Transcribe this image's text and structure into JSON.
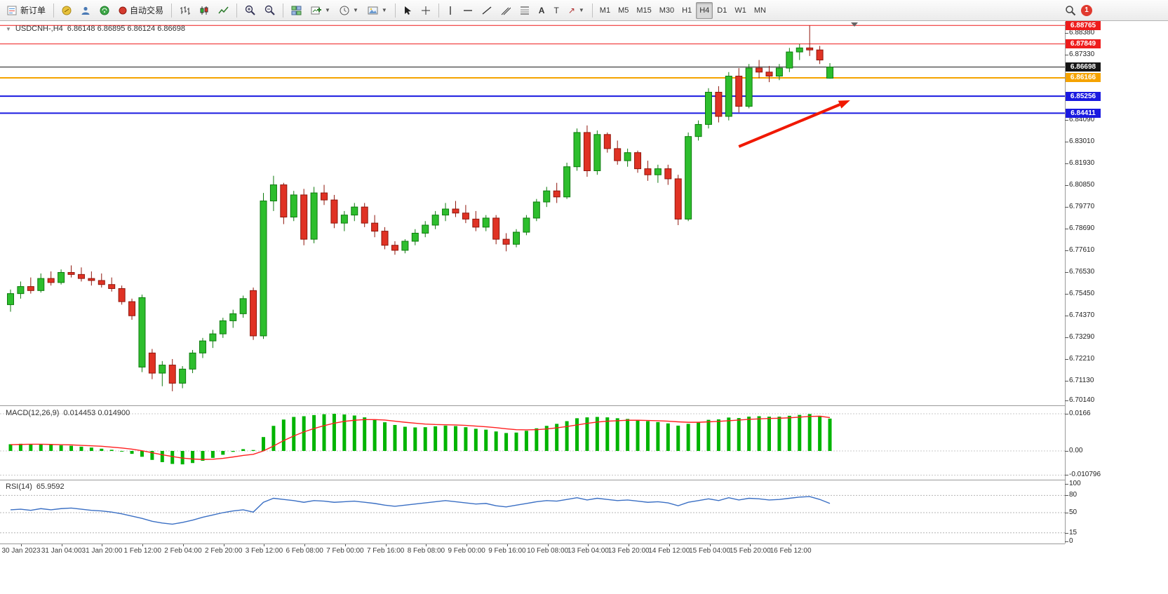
{
  "toolbar": {
    "new_order_label": "新订单",
    "auto_trading_label": "自动交易",
    "timeframes": [
      "M1",
      "M5",
      "M15",
      "M30",
      "H1",
      "H4",
      "D1",
      "W1",
      "MN"
    ],
    "active_timeframe": "H4",
    "notification_badge": "1"
  },
  "chart": {
    "symbol_title": "USDCNH-,H4",
    "ohlc_text": "6.86148 6.86895 6.86124 6.86698"
  },
  "chart_data": {
    "type": "candlestick",
    "symbol": "USDCNH-",
    "timeframe": "H4",
    "current_ohlc": {
      "open": "6.86148",
      "high": "6.86895",
      "low": "6.86124",
      "close": "6.86698"
    },
    "colors": {
      "up": "#2DBE2D",
      "up_edge": "#0E7A0E",
      "down": "#E03224",
      "down_edge": "#8F160C"
    },
    "price_axis_ticks": [
      "6.88380",
      "6.87330",
      "6.84090",
      "6.83010",
      "6.81930",
      "6.80850",
      "6.79770",
      "6.78690",
      "6.77610",
      "6.76530",
      "6.75450",
      "6.74370",
      "6.73290",
      "6.72210",
      "6.71130",
      "6.70140"
    ],
    "levels": [
      {
        "price": 6.88765,
        "label": "6.88765",
        "color": "#ee1c1c",
        "lw": 1,
        "current": false
      },
      {
        "price": 6.87849,
        "label": "6.87849",
        "color": "#ee1c1c",
        "lw": 1,
        "current": false
      },
      {
        "price": 6.86698,
        "label": "6.86698",
        "color": "#151515",
        "lw": 1,
        "current": true
      },
      {
        "price": 6.86166,
        "label": "6.86166",
        "color": "#f5a300",
        "lw": 2,
        "current": false
      },
      {
        "price": 6.85256,
        "label": "6.85256",
        "color": "#1a1ae0",
        "lw": 2,
        "current": false
      },
      {
        "price": 6.84411,
        "label": "6.84411",
        "color": "#1a1ae0",
        "lw": 2,
        "current": false
      }
    ],
    "candles": [
      [
        6.749,
        6.7565,
        6.7455,
        6.7545
      ],
      [
        6.7545,
        6.7605,
        6.752,
        6.758
      ],
      [
        6.758,
        6.7625,
        6.7545,
        6.756
      ],
      [
        6.756,
        6.7645,
        6.755,
        6.762
      ],
      [
        6.762,
        6.7655,
        6.7585,
        6.76
      ],
      [
        6.76,
        6.7665,
        6.759,
        6.765
      ],
      [
        6.765,
        6.7685,
        6.7625,
        6.764
      ],
      [
        6.764,
        6.7675,
        6.7605,
        6.762
      ],
      [
        6.762,
        6.7655,
        6.7585,
        6.761
      ],
      [
        6.761,
        6.7645,
        6.7575,
        6.759
      ],
      [
        6.759,
        6.7625,
        6.7555,
        6.757
      ],
      [
        6.757,
        6.7585,
        6.749,
        6.7505
      ],
      [
        6.7505,
        6.752,
        6.7415,
        6.7435
      ],
      [
        6.718,
        6.754,
        6.7155,
        6.7525
      ],
      [
        6.725,
        6.727,
        6.712,
        6.715
      ],
      [
        6.715,
        6.721,
        6.7085,
        6.719
      ],
      [
        6.719,
        6.722,
        6.706,
        6.71
      ],
      [
        6.71,
        6.7185,
        6.7075,
        6.717
      ],
      [
        6.717,
        6.7265,
        6.715,
        6.725
      ],
      [
        6.725,
        6.7325,
        6.7225,
        6.731
      ],
      [
        6.731,
        6.7365,
        6.7275,
        6.7345
      ],
      [
        6.7345,
        6.7425,
        6.7325,
        6.741
      ],
      [
        6.741,
        6.7465,
        6.7375,
        6.7445
      ],
      [
        6.7445,
        6.7535,
        6.7425,
        6.752
      ],
      [
        6.756,
        6.7575,
        6.7315,
        6.7335
      ],
      [
        6.7335,
        6.8045,
        6.732,
        6.8005
      ],
      [
        6.8005,
        6.813,
        6.7955,
        6.8085
      ],
      [
        6.8085,
        6.8095,
        6.789,
        6.7925
      ],
      [
        6.7925,
        6.8055,
        6.7905,
        6.8035
      ],
      [
        6.8035,
        6.8065,
        6.7785,
        6.7815
      ],
      [
        6.7815,
        6.8075,
        6.7795,
        6.8045
      ],
      [
        6.8045,
        6.8085,
        6.7985,
        6.801
      ],
      [
        6.801,
        6.8035,
        6.787,
        6.7895
      ],
      [
        6.7895,
        6.7955,
        6.7855,
        6.7935
      ],
      [
        6.7935,
        6.7995,
        6.7905,
        6.7975
      ],
      [
        6.7975,
        6.7995,
        6.7875,
        6.7895
      ],
      [
        6.7895,
        6.7935,
        6.7825,
        6.7855
      ],
      [
        6.7855,
        6.7875,
        6.7765,
        6.7785
      ],
      [
        6.7785,
        6.7805,
        6.7738,
        6.776
      ],
      [
        6.776,
        6.7815,
        6.7745,
        6.7805
      ],
      [
        6.7805,
        6.7865,
        6.7785,
        6.7845
      ],
      [
        6.7845,
        6.7905,
        6.7825,
        6.7885
      ],
      [
        6.7885,
        6.7955,
        6.7865,
        6.7935
      ],
      [
        6.7935,
        6.7995,
        6.7905,
        6.7965
      ],
      [
        6.7965,
        6.8005,
        6.7925,
        6.7945
      ],
      [
        6.7945,
        6.7985,
        6.7895,
        6.7915
      ],
      [
        6.7915,
        6.7955,
        6.7855,
        6.7875
      ],
      [
        6.7875,
        6.7935,
        6.7855,
        6.792
      ],
      [
        6.792,
        6.7935,
        6.779,
        6.7815
      ],
      [
        6.7815,
        6.7845,
        6.7755,
        6.779
      ],
      [
        6.779,
        6.7865,
        6.7775,
        6.785
      ],
      [
        6.785,
        6.7935,
        6.7835,
        6.792
      ],
      [
        6.792,
        6.8015,
        6.7905,
        6.8
      ],
      [
        6.8,
        6.8075,
        6.7975,
        6.8055
      ],
      [
        6.8055,
        6.8095,
        6.7995,
        6.8025
      ],
      [
        6.8025,
        6.8195,
        6.8015,
        6.8175
      ],
      [
        6.8175,
        6.8365,
        6.8155,
        6.8345
      ],
      [
        6.8345,
        6.838,
        6.8125,
        6.8155
      ],
      [
        6.8155,
        6.8355,
        6.8135,
        6.8335
      ],
      [
        6.8335,
        6.8345,
        6.8245,
        6.8265
      ],
      [
        6.8265,
        6.8305,
        6.8185,
        6.8205
      ],
      [
        6.8205,
        6.8265,
        6.8175,
        6.8245
      ],
      [
        6.8245,
        6.8255,
        6.8145,
        6.8165
      ],
      [
        6.8165,
        6.8205,
        6.8105,
        6.8135
      ],
      [
        6.8135,
        6.8185,
        6.8095,
        6.8165
      ],
      [
        6.8165,
        6.8185,
        6.8085,
        6.8115
      ],
      [
        6.8115,
        6.8135,
        6.7885,
        6.7915
      ],
      [
        6.7915,
        6.8345,
        6.7905,
        6.8325
      ],
      [
        6.8325,
        6.8405,
        6.8305,
        6.8385
      ],
      [
        6.8385,
        6.8565,
        6.8365,
        6.8545
      ],
      [
        6.8545,
        6.8575,
        6.8395,
        6.8425
      ],
      [
        6.8425,
        6.8645,
        6.8405,
        6.8625
      ],
      [
        6.8625,
        6.8665,
        6.8445,
        6.8475
      ],
      [
        6.8475,
        6.8685,
        6.8465,
        6.8665
      ],
      [
        6.8665,
        6.8705,
        6.8615,
        6.8645
      ],
      [
        6.8645,
        6.8675,
        6.8595,
        6.8625
      ],
      [
        6.8625,
        6.8685,
        6.8605,
        6.8665
      ],
      [
        6.8665,
        6.8765,
        6.8645,
        6.8745
      ],
      [
        6.8745,
        6.8785,
        6.8705,
        6.8765
      ],
      [
        6.8765,
        6.8876,
        6.8725,
        6.8755
      ],
      [
        6.8755,
        6.8775,
        6.8685,
        6.8705
      ],
      [
        6.86148,
        6.86895,
        6.86124,
        6.86698
      ]
    ],
    "macd": {
      "label": "MACD(12,26,9)",
      "values_text": "0.014453 0.014900",
      "hist_value": 0.014453,
      "line_value": 0.0149,
      "ticks": [
        {
          "label": "0.0166",
          "value": 0.0166
        },
        {
          "label": "0.00",
          "value": 0
        },
        {
          "label": "-0.010796",
          "value": -0.010796
        }
      ],
      "histogram": [
        0.003,
        0.0032,
        0.0031,
        0.0029,
        0.0027,
        0.0025,
        0.0023,
        0.0019,
        0.0015,
        0.001,
        0.0005,
        -0.0003,
        -0.0013,
        -0.0026,
        -0.004,
        -0.005,
        -0.0058,
        -0.006,
        -0.0054,
        -0.0044,
        -0.0031,
        -0.0017,
        -0.0004,
        0.0008,
        0.0004,
        0.0062,
        0.0112,
        0.014,
        0.0152,
        0.0155,
        0.016,
        0.0164,
        0.0166,
        0.0163,
        0.0158,
        0.015,
        0.014,
        0.0128,
        0.0116,
        0.0108,
        0.0105,
        0.0106,
        0.011,
        0.0113,
        0.0111,
        0.0106,
        0.0099,
        0.0095,
        0.0087,
        0.008,
        0.0082,
        0.009,
        0.0101,
        0.0112,
        0.0121,
        0.0133,
        0.0146,
        0.015,
        0.0152,
        0.015,
        0.0146,
        0.0143,
        0.0139,
        0.0133,
        0.0129,
        0.0123,
        0.0113,
        0.0121,
        0.0129,
        0.0139,
        0.0141,
        0.0149,
        0.0147,
        0.0153,
        0.0155,
        0.0153,
        0.0153,
        0.0157,
        0.0161,
        0.0165,
        0.0157,
        0.01445
      ],
      "signal": [
        0.0028,
        0.0029,
        0.003,
        0.003,
        0.0029,
        0.0028,
        0.0027,
        0.0025,
        0.0023,
        0.0021,
        0.0017,
        0.0013,
        0.0008,
        0.0001,
        -0.0008,
        -0.0017,
        -0.0025,
        -0.0032,
        -0.0036,
        -0.0038,
        -0.0037,
        -0.0033,
        -0.0027,
        -0.002,
        -0.0015,
        0.0,
        0.0022,
        0.0046,
        0.0067,
        0.0085,
        0.01,
        0.0113,
        0.0124,
        0.0132,
        0.0137,
        0.014,
        0.014,
        0.0138,
        0.0133,
        0.0128,
        0.0124,
        0.012,
        0.0118,
        0.0117,
        0.0116,
        0.0114,
        0.0111,
        0.0108,
        0.0104,
        0.0099,
        0.0095,
        0.0094,
        0.0095,
        0.0098,
        0.0103,
        0.0109,
        0.0116,
        0.0123,
        0.0129,
        0.0133,
        0.0135,
        0.0137,
        0.0137,
        0.0136,
        0.0135,
        0.0133,
        0.013,
        0.0128,
        0.0128,
        0.013,
        0.0132,
        0.0135,
        0.0138,
        0.0141,
        0.0143,
        0.0145,
        0.0146,
        0.0148,
        0.0151,
        0.0154,
        0.0155,
        0.0149
      ]
    },
    "rsi": {
      "label": "RSI(14)",
      "value_text": "65.9592",
      "value": 65.9592,
      "levels": [
        80,
        50,
        15
      ],
      "ticks": [
        {
          "label": "100",
          "value": 100
        },
        {
          "label": "80",
          "value": 80
        },
        {
          "label": "50",
          "value": 50
        },
        {
          "label": "15",
          "value": 15
        },
        {
          "label": "0",
          "value": 0
        }
      ],
      "values": [
        55,
        56,
        54,
        57,
        55,
        57,
        58,
        56,
        54,
        53,
        51,
        48,
        44,
        40,
        35,
        32,
        30,
        33,
        37,
        42,
        46,
        50,
        53,
        55,
        51,
        68,
        75,
        73,
        71,
        68,
        71,
        70,
        68,
        69,
        70,
        68,
        66,
        63,
        61,
        63,
        65,
        67,
        69,
        71,
        69,
        67,
        65,
        66,
        62,
        60,
        63,
        66,
        69,
        71,
        70,
        73,
        76,
        72,
        75,
        73,
        71,
        72,
        70,
        68,
        69,
        67,
        62,
        68,
        71,
        74,
        71,
        76,
        72,
        75,
        74,
        72,
        73,
        75,
        77,
        78,
        73,
        66
      ]
    },
    "time_labels": [
      "30 Jan 2023",
      "31 Jan 04:00",
      "31 Jan 20:00",
      "1 Feb 12:00",
      "2 Feb 04:00",
      "2 Feb 20:00",
      "3 Feb 12:00",
      "6 Feb 08:00",
      "7 Feb 00:00",
      "7 Feb 16:00",
      "8 Feb 08:00",
      "9 Feb 00:00",
      "9 Feb 16:00",
      "10 Feb 08:00",
      "13 Feb 04:00",
      "13 Feb 20:00",
      "14 Feb 12:00",
      "15 Feb 04:00",
      "15 Feb 20:00",
      "16 Feb 12:00"
    ],
    "annotations": {
      "trend_arrow": {
        "x1_index": 72,
        "price1": 6.8275,
        "x2_index": 83,
        "price2": 6.8505,
        "color": "#f01800"
      }
    }
  }
}
